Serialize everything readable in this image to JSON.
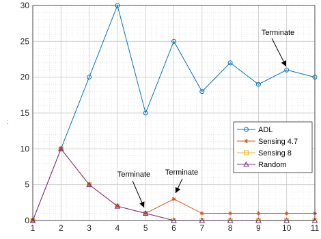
{
  "chart_data": {
    "type": "line",
    "x": [
      1,
      2,
      3,
      4,
      5,
      6,
      7,
      8,
      9,
      10,
      11
    ],
    "xlim": [
      1,
      11
    ],
    "ylim": [
      0,
      30
    ],
    "xticks": [
      1,
      2,
      3,
      4,
      5,
      6,
      7,
      8,
      9,
      10,
      11
    ],
    "yticks": [
      0,
      5,
      10,
      15,
      20,
      25,
      30
    ],
    "ylabel": "· ·",
    "grid": true,
    "minor_grid": true,
    "legend_position": "middle-right",
    "series": [
      {
        "name": "ADL",
        "color": "#0072BD",
        "marker": "circle",
        "values": [
          0,
          10,
          20,
          30,
          15,
          25,
          18,
          22,
          19,
          21,
          20
        ]
      },
      {
        "name": "Sensing 4.7",
        "color": "#D95319",
        "marker": "asterisk",
        "values": [
          0,
          10,
          5,
          2,
          1,
          3,
          1,
          1,
          1,
          1,
          1
        ]
      },
      {
        "name": "Sensing 8",
        "color": "#EDB120",
        "marker": "square",
        "values": [
          0,
          10,
          5,
          2,
          1,
          0,
          0,
          0,
          0,
          0,
          0
        ]
      },
      {
        "name": "Random",
        "color": "#7E2F8E",
        "marker": "triangle",
        "values": [
          0,
          10,
          5,
          2,
          1,
          0,
          0,
          0,
          0,
          0,
          0
        ]
      }
    ],
    "annotations": [
      {
        "text": "Terminate",
        "x": 10,
        "y": 21
      },
      {
        "text": "Terminate",
        "x": 5,
        "y": 1
      },
      {
        "text": "Terminate",
        "x": 6,
        "y": 3
      }
    ]
  }
}
